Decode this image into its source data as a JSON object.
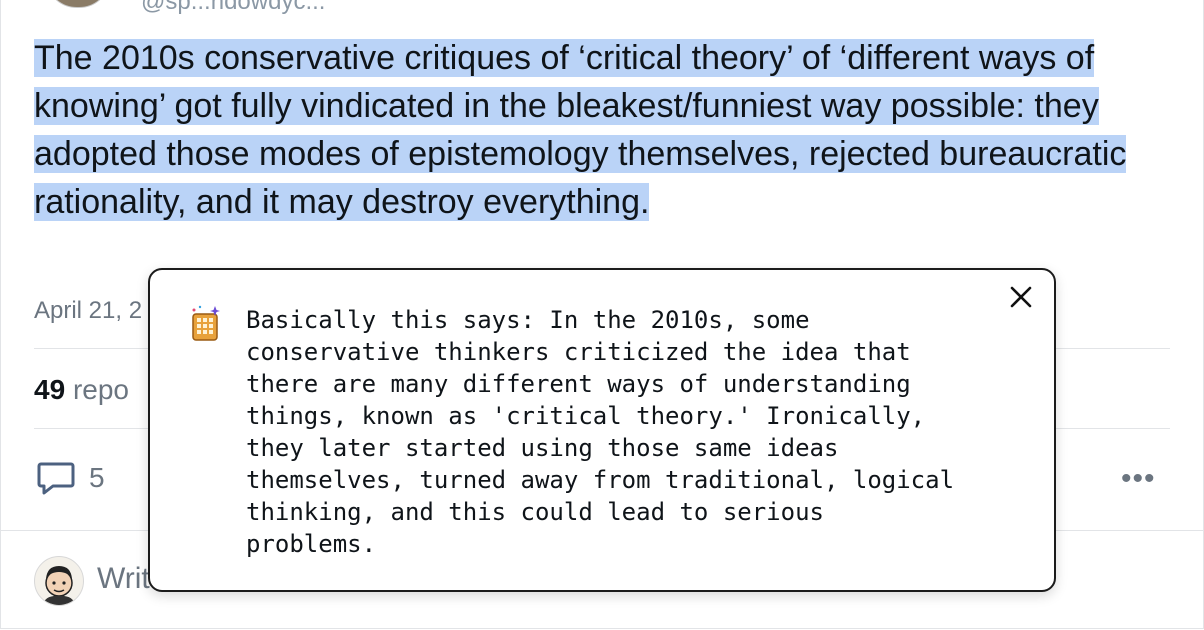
{
  "post": {
    "handle": "@sp...ndowdyc...",
    "text": "The 2010s conservative critiques of ‘critical theory’ of ‘different ways of knowing’ got fully vindicated in the bleakest/funniest way possible: they adopted those modes of epistemology themselves, rejected bureaucratic rationality, and it may destroy everything.",
    "date": "April 21, 2",
    "reposts_count": "49",
    "reposts_label": "repo",
    "reply_count": "5"
  },
  "composer": {
    "placeholder": "Writ"
  },
  "popup": {
    "text": "Basically this says: In the 2010s, some\nconservative thinkers criticized the idea that\nthere are many different ways of understanding\nthings, known as 'critical theory.' Ironically,\nthey later started using those same ideas\nthemselves, turned away from traditional, logical\nthinking, and this could lead to serious\nproblems.",
    "icon": "sparkle-waffle-icon",
    "close_icon": "close-icon"
  },
  "colors": {
    "highlight": "#bad3f7",
    "muted": "#6b7580",
    "text": "#0f1419",
    "border": "#e2e4e7"
  }
}
